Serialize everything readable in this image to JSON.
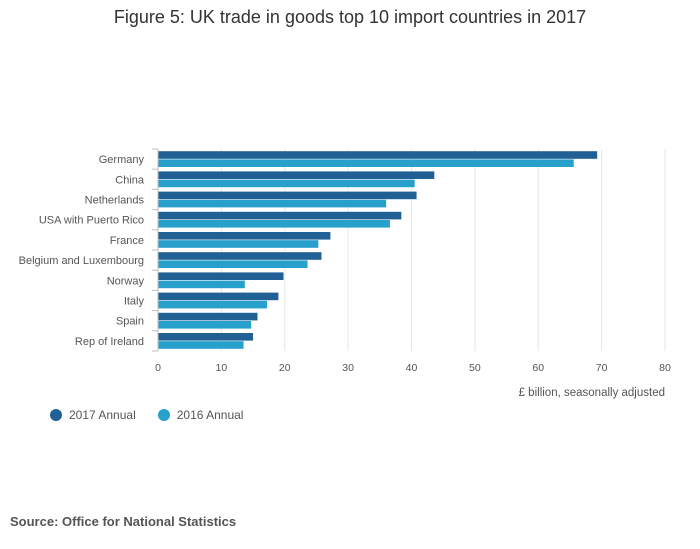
{
  "title": "Figure 5: UK trade in goods top 10 import countries in 2017",
  "source": "Source: Office for National Statistics",
  "colors": {
    "series_2017": "#206095",
    "series_2016": "#27a0cc",
    "grid": "#e6e6e6",
    "axis": "#bfbfbf"
  },
  "chart_data": {
    "type": "bar",
    "orientation": "horizontal",
    "title": "Figure 5: UK trade in goods top 10 import countries in 2017",
    "xlabel": "£ billion, seasonally adjusted",
    "ylabel": "",
    "xlim": [
      0,
      80
    ],
    "xticks": [
      0,
      10,
      20,
      30,
      40,
      50,
      60,
      70,
      80
    ],
    "grid": true,
    "legend_position": "bottom-left",
    "categories": [
      "Germany",
      "China",
      "Netherlands",
      "USA with Puerto Rico",
      "France",
      "Belgium and Luxembourg",
      "Norway",
      "Italy",
      "Spain",
      "Rep of Ireland"
    ],
    "series": [
      {
        "name": "2017 Annual",
        "color": "#206095",
        "values": [
          69.3,
          43.6,
          40.8,
          38.4,
          27.2,
          25.8,
          19.8,
          19.0,
          15.7,
          15.0
        ]
      },
      {
        "name": "2016 Annual",
        "color": "#27a0cc",
        "values": [
          65.6,
          40.5,
          36.0,
          36.6,
          25.3,
          23.6,
          13.7,
          17.2,
          14.7,
          13.5
        ]
      }
    ]
  }
}
